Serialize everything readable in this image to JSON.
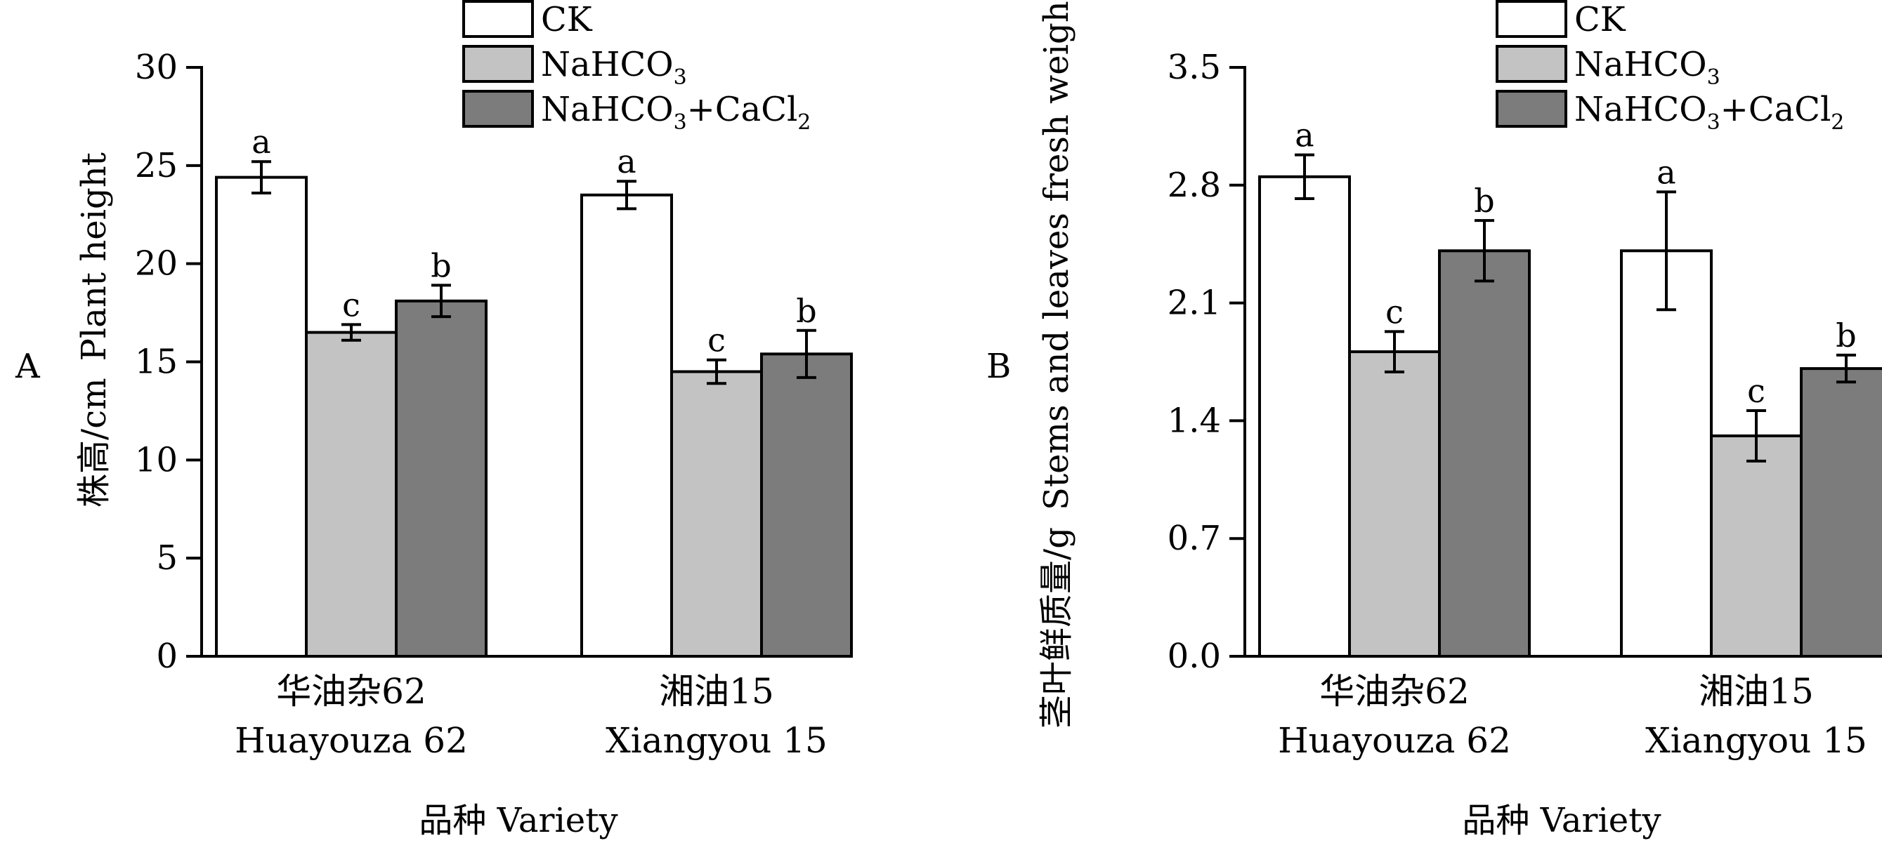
{
  "chart_data": [
    {
      "type": "bar",
      "panel_label": "A",
      "ylabel": [
        "株高/cm",
        "Plant height"
      ],
      "xlabel": "品种  Variety",
      "categories": [
        {
          "cn": "华油杂62",
          "en": "Huayouza 62"
        },
        {
          "cn": "湘油15",
          "en": "Xiangyou 15"
        }
      ],
      "ylim": [
        0,
        30
      ],
      "yticks": [
        "0",
        "5",
        "10",
        "15",
        "20",
        "25",
        "30"
      ],
      "series": [
        {
          "name": "CK",
          "color": "#ffffff",
          "values": [
            24.4,
            23.5
          ],
          "errors": [
            0.8,
            0.7
          ],
          "letters": [
            "a",
            "a"
          ]
        },
        {
          "name": "NaHCO3",
          "color": "#c3c3c3",
          "values": [
            16.5,
            14.5
          ],
          "errors": [
            0.4,
            0.6
          ],
          "letters": [
            "c",
            "c"
          ]
        },
        {
          "name": "NaHCO3+CaCl2",
          "color": "#7c7c7c",
          "values": [
            18.1,
            15.4
          ],
          "errors": [
            0.8,
            1.2
          ],
          "letters": [
            "b",
            "b"
          ]
        }
      ]
    },
    {
      "type": "bar",
      "panel_label": "B",
      "ylabel": [
        "茎叶鲜质量/g",
        "Stems and leaves  fresh weight"
      ],
      "xlabel": "品种  Variety",
      "categories": [
        {
          "cn": "华油杂62",
          "en": "Huayouza 62"
        },
        {
          "cn": "湘油15",
          "en": "Xiangyou 15"
        }
      ],
      "ylim": [
        0,
        3.5
      ],
      "yticks": [
        "0.0",
        "0.7",
        "1.4",
        "2.1",
        "2.8",
        "3.5"
      ],
      "series": [
        {
          "name": "CK",
          "color": "#ffffff",
          "values": [
            2.85,
            2.41
          ],
          "errors": [
            0.13,
            0.35
          ],
          "letters": [
            "a",
            "a"
          ]
        },
        {
          "name": "NaHCO3",
          "color": "#c3c3c3",
          "values": [
            1.81,
            1.31
          ],
          "errors": [
            0.12,
            0.15
          ],
          "letters": [
            "c",
            "c"
          ]
        },
        {
          "name": "NaHCO3+CaCl2",
          "color": "#7c7c7c",
          "values": [
            2.41,
            1.71
          ],
          "errors": [
            0.18,
            0.08
          ],
          "letters": [
            "b",
            "b"
          ]
        }
      ]
    }
  ],
  "legend": [
    {
      "prefix": "CK",
      "sub1": "",
      "mid": "",
      "sub2": "",
      "color": "#ffffff"
    },
    {
      "prefix": "NaHCO",
      "sub1": "3",
      "mid": "",
      "sub2": "",
      "color": "#c3c3c3"
    },
    {
      "prefix": "NaHCO",
      "sub1": "3",
      "mid": "+CaCl",
      "sub2": "2",
      "color": "#7c7c7c"
    }
  ]
}
